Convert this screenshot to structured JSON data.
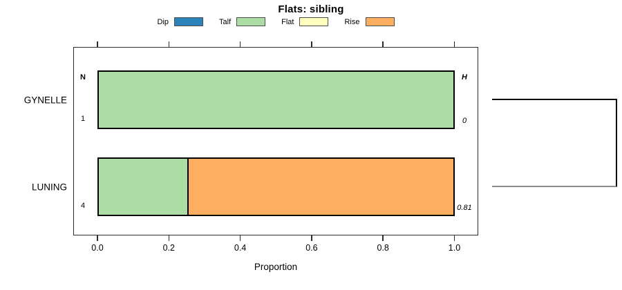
{
  "title": "Flats: sibling",
  "axis": {
    "xlabel": "Proportion",
    "tick_labels": [
      "0.0",
      "0.2",
      "0.4",
      "0.6",
      "0.8",
      "1.0"
    ],
    "tick_values": [
      0,
      0.2,
      0.4,
      0.6,
      0.8,
      1.0
    ]
  },
  "columns": {
    "n_header": "N",
    "h_header": "H"
  },
  "legend": [
    {
      "label": "Dip",
      "color": "#2B83BA"
    },
    {
      "label": "Talf",
      "color": "#ABDDA4"
    },
    {
      "label": "Flat",
      "color": "#FFFFBF"
    },
    {
      "label": "Rise",
      "color": "#FDAE61"
    }
  ],
  "rows": [
    {
      "category": "GYNELLE",
      "n": "1",
      "h": "0",
      "segments": [
        {
          "series": "Talf",
          "value": 1.0,
          "color": "#ABDDA4"
        }
      ]
    },
    {
      "category": "LUNING",
      "n": "4",
      "h": "0.81",
      "segments": [
        {
          "series": "Talf",
          "value": 0.25,
          "color": "#ABDDA4"
        },
        {
          "series": "Rise",
          "value": 0.75,
          "color": "#FDAE61"
        }
      ]
    }
  ],
  "chart_data": {
    "type": "bar",
    "orientation": "horizontal",
    "stacked": true,
    "title": "Flats: sibling",
    "xlabel": "Proportion",
    "ylabel": "",
    "xlim": [
      0,
      1
    ],
    "x_ticks": [
      0.0,
      0.2,
      0.4,
      0.6,
      0.8,
      1.0
    ],
    "categories": [
      "GYNELLE",
      "LUNING"
    ],
    "series": [
      {
        "name": "Dip",
        "color": "#2B83BA",
        "values": [
          0,
          0
        ]
      },
      {
        "name": "Talf",
        "color": "#ABDDA4",
        "values": [
          1.0,
          0.25
        ]
      },
      {
        "name": "Flat",
        "color": "#FFFFBF",
        "values": [
          0,
          0
        ]
      },
      {
        "name": "Rise",
        "color": "#FDAE61",
        "values": [
          0,
          0.75
        ]
      }
    ],
    "annotations": {
      "N": [
        "1",
        "4"
      ],
      "H": [
        "0",
        "0.81"
      ]
    },
    "legend_position": "top-center",
    "grid": false,
    "right_bracket_connects": [
      "GYNELLE",
      "LUNING"
    ]
  }
}
